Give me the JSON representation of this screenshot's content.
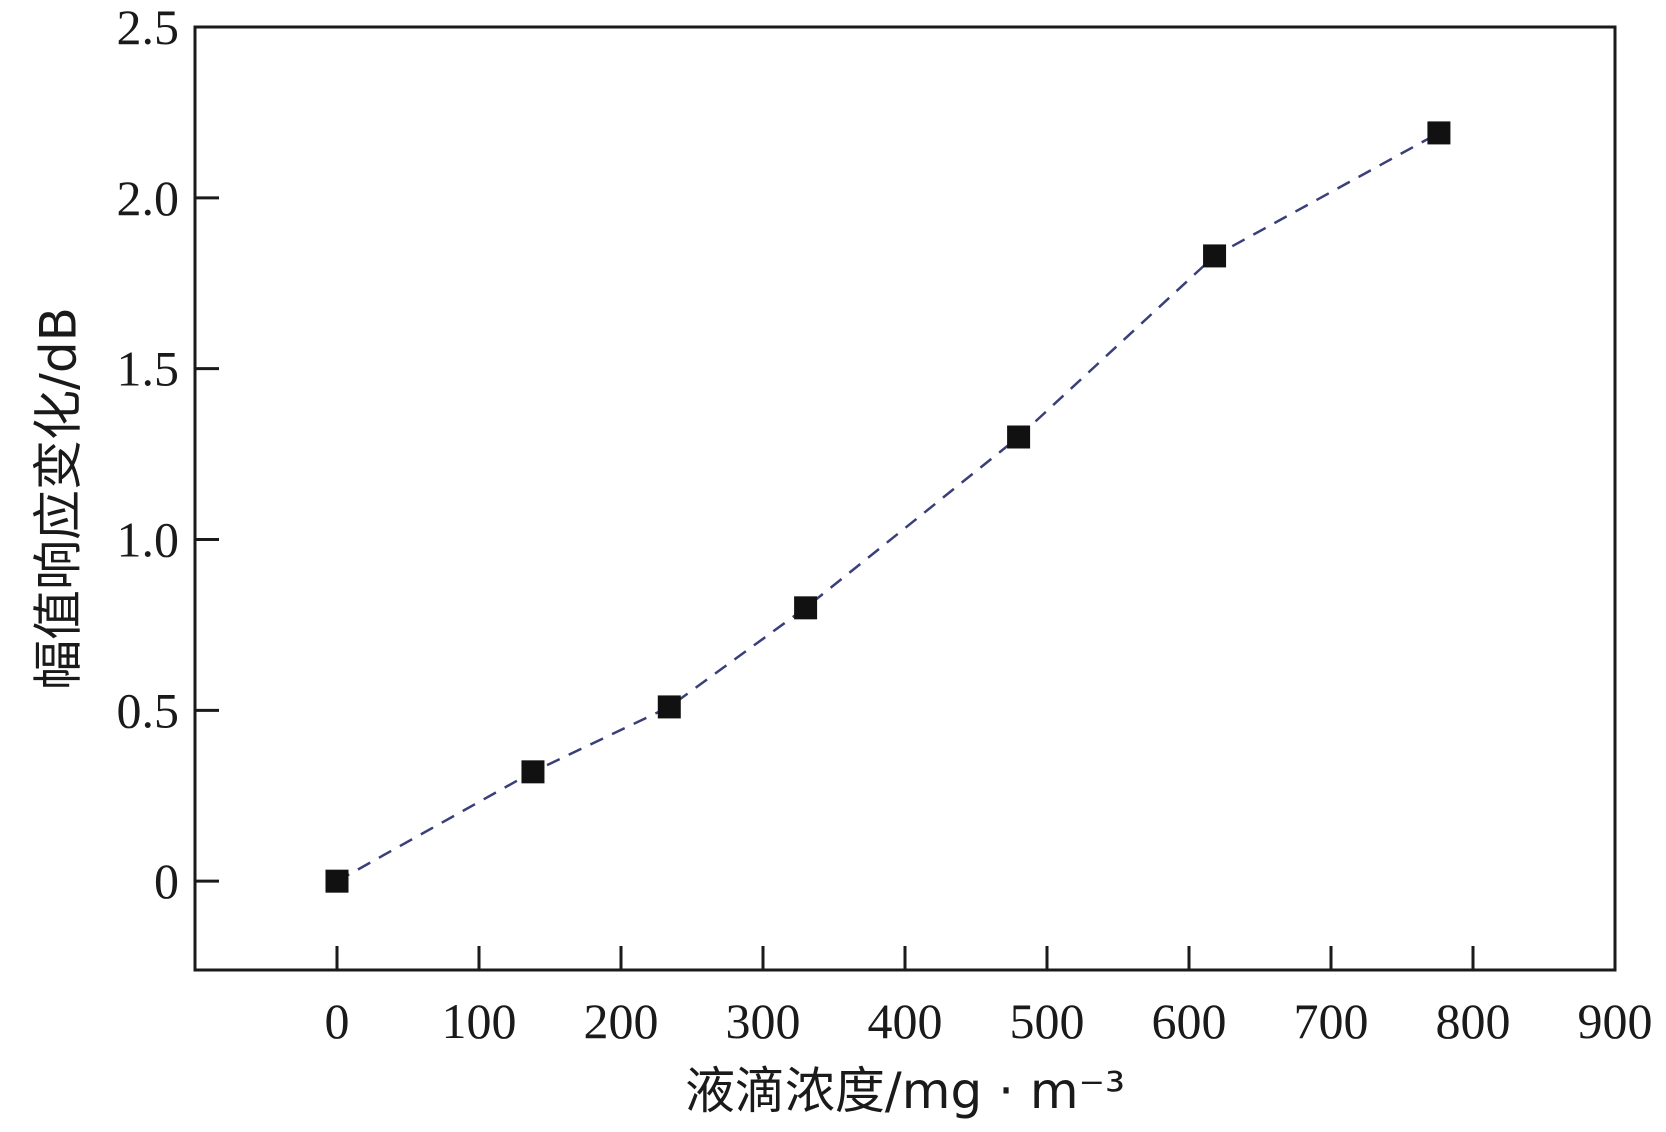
{
  "chart_data": {
    "type": "scatter",
    "title": "",
    "xlabel": "液滴浓度/mg · m⁻³",
    "ylabel": "幅值响应变化/dB",
    "xlim": [
      -100,
      900
    ],
    "ylim": [
      -0.26,
      2.5
    ],
    "x_ticks": [
      0,
      100,
      200,
      300,
      400,
      500,
      600,
      700,
      800,
      900
    ],
    "y_ticks": [
      0,
      0.5,
      1.0,
      1.5,
      2.0,
      2.5
    ],
    "y_tick_labels": [
      "0",
      "0.5",
      "1.0",
      "1.5",
      "2.0",
      "2.5"
    ],
    "grid": false,
    "series": [
      {
        "marker": "square",
        "marker_color": "#111111",
        "line_style": "dashed",
        "line_color": "#3a3f7a",
        "x": [
          0,
          138,
          234,
          330,
          480,
          618,
          776
        ],
        "y": [
          0.0,
          0.32,
          0.51,
          0.8,
          1.3,
          1.83,
          2.19
        ]
      }
    ]
  }
}
